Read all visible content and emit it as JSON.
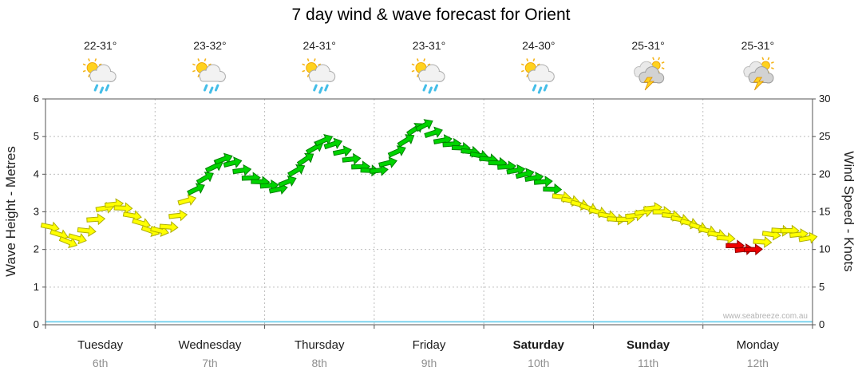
{
  "title": "7 day wind & wave forecast for Orient",
  "watermark": "www.seabreeze.com.au",
  "axes": {
    "left_label": "Wave Height - Metres",
    "right_label": "Wind Speed - Knots",
    "left_ticks": [
      0,
      1,
      2,
      3,
      4,
      5,
      6
    ],
    "right_ticks": [
      0,
      5,
      10,
      15,
      20,
      25,
      30
    ]
  },
  "days": [
    {
      "name": "Tuesday",
      "date": "6th",
      "temp": "22-31°",
      "icon": "sun-cloud-rain",
      "bold": false
    },
    {
      "name": "Wednesday",
      "date": "7th",
      "temp": "23-32°",
      "icon": "sun-cloud-rain",
      "bold": false
    },
    {
      "name": "Thursday",
      "date": "8th",
      "temp": "24-31°",
      "icon": "sun-cloud-rain",
      "bold": false
    },
    {
      "name": "Friday",
      "date": "9th",
      "temp": "23-31°",
      "icon": "sun-cloud-rain",
      "bold": false
    },
    {
      "name": "Saturday",
      "date": "10th",
      "temp": "24-30°",
      "icon": "sun-cloud-rain",
      "bold": true
    },
    {
      "name": "Sunday",
      "date": "11th",
      "temp": "25-31°",
      "icon": "storm",
      "bold": true
    },
    {
      "name": "Monday",
      "date": "12th",
      "temp": "25-31°",
      "icon": "storm",
      "bold": false
    }
  ],
  "chart_data": {
    "type": "scatter",
    "marker": "wind-arrow",
    "title": "7 day wind & wave forecast for Orient",
    "xlabel": "",
    "categories": [
      "Tuesday 6th",
      "Wednesday 7th",
      "Thursday 8th",
      "Friday 9th",
      "Saturday 10th",
      "Sunday 11th",
      "Monday 12th"
    ],
    "left_axis": {
      "label": "Wave Height - Metres",
      "range": [
        0,
        6
      ]
    },
    "right_axis": {
      "label": "Wind Speed - Knots",
      "range": [
        0,
        30
      ]
    },
    "points_per_day": 12,
    "wind_knots": [
      [
        13,
        12,
        11,
        11.5,
        12.5,
        14,
        15.5,
        16,
        15.5,
        14.5,
        13.5,
        12.5
      ],
      [
        12.5,
        13,
        14.5,
        16.5,
        18,
        19.5,
        21,
        22,
        21.5,
        20.5,
        19.5,
        19
      ],
      [
        18.5,
        18,
        19,
        20.5,
        22,
        23.5,
        24.5,
        24,
        23,
        22,
        21,
        20.5
      ],
      [
        20.5,
        21.5,
        23,
        24.5,
        26,
        26.5,
        25.5,
        24.5,
        24,
        23.5,
        23,
        22.5
      ],
      [
        22,
        21.5,
        21,
        20.5,
        20,
        19.5,
        19,
        18,
        17,
        16.5,
        16,
        15.5
      ],
      [
        15,
        14.5,
        14,
        14,
        14.5,
        15,
        15.5,
        15,
        14.5,
        14,
        13.5,
        13
      ],
      [
        12.5,
        12,
        11.5,
        10.5,
        10,
        10,
        11,
        12,
        12.5,
        12.5,
        12,
        11.5
      ]
    ],
    "wind_color": [
      [
        "yellow",
        "yellow",
        "yellow",
        "yellow",
        "yellow",
        "yellow",
        "yellow",
        "yellow",
        "yellow",
        "yellow",
        "yellow",
        "yellow"
      ],
      [
        "yellow",
        "yellow",
        "yellow",
        "yellow",
        "green",
        "green",
        "green",
        "green",
        "green",
        "green",
        "green",
        "green"
      ],
      [
        "green",
        "green",
        "green",
        "green",
        "green",
        "green",
        "green",
        "green",
        "green",
        "green",
        "green",
        "green"
      ],
      [
        "green",
        "green",
        "green",
        "green",
        "green",
        "green",
        "green",
        "green",
        "green",
        "green",
        "green",
        "green"
      ],
      [
        "green",
        "green",
        "green",
        "green",
        "green",
        "green",
        "green",
        "green",
        "yellow",
        "yellow",
        "yellow",
        "yellow"
      ],
      [
        "yellow",
        "yellow",
        "yellow",
        "yellow",
        "yellow",
        "yellow",
        "yellow",
        "yellow",
        "yellow",
        "yellow",
        "yellow",
        "yellow"
      ],
      [
        "yellow",
        "yellow",
        "yellow",
        "red",
        "red",
        "red",
        "yellow",
        "yellow",
        "yellow",
        "yellow",
        "yellow",
        "yellow"
      ]
    ],
    "wind_rot_deg": [
      [
        12,
        18,
        22,
        16,
        6,
        -4,
        -10,
        -6,
        2,
        10,
        16,
        20
      ],
      [
        14,
        4,
        -6,
        -16,
        -26,
        -30,
        -26,
        -20,
        -14,
        -8,
        -2,
        2
      ],
      [
        -4,
        -12,
        -22,
        -30,
        -34,
        -30,
        -24,
        -18,
        -12,
        -6,
        -2,
        2
      ],
      [
        -6,
        -14,
        -24,
        -32,
        -34,
        -28,
        -18,
        -10,
        -4,
        2,
        6,
        10
      ],
      [
        6,
        2,
        -4,
        -10,
        -14,
        -10,
        -4,
        2,
        6,
        10,
        14,
        18
      ],
      [
        14,
        10,
        4,
        0,
        -6,
        -10,
        -6,
        0,
        6,
        10,
        14,
        18
      ],
      [
        14,
        10,
        4,
        0,
        -6,
        -2,
        4,
        8,
        4,
        0,
        -6,
        -10
      ]
    ],
    "wave_height_m": {
      "values": [
        0.08,
        0.08,
        0.08,
        0.08,
        0.08,
        0.08,
        0.08,
        0.08
      ],
      "color": "#7FD4EE"
    },
    "palette": {
      "yellow": {
        "fill": "#FFFF00",
        "stroke": "#AFAF00"
      },
      "green": {
        "fill": "#00D400",
        "stroke": "#008000"
      },
      "red": {
        "fill": "#EE0000",
        "stroke": "#900000"
      }
    },
    "grid": {
      "show": true,
      "color": "#BDBDBD"
    }
  }
}
